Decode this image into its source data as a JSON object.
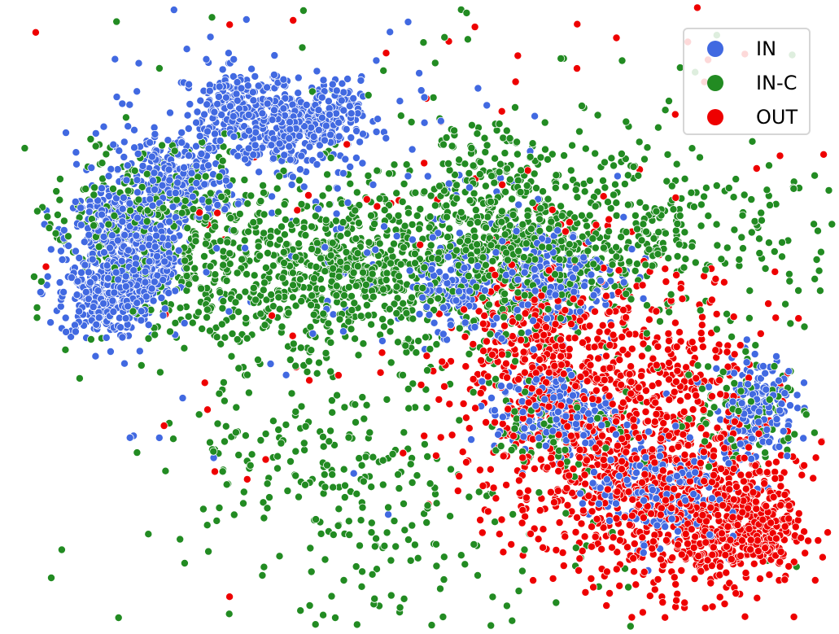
{
  "chart_data": {
    "type": "scatter",
    "title": "",
    "xlabel": "",
    "ylabel": "",
    "axes_visible": false,
    "grid": false,
    "legend_placement": "top-right",
    "marker_edge_color": "#ffffff",
    "series": [
      {
        "name": "IN",
        "color": "#4169e1",
        "clusters": [
          {
            "cx": -90,
            "cy": 60,
            "sx": 5,
            "sy": 6,
            "n": 170
          },
          {
            "cx": -105,
            "cy": 40,
            "sx": 6,
            "sy": 6,
            "n": 200
          },
          {
            "cx": -120,
            "cy": 80,
            "sx": 7,
            "sy": 6,
            "n": 240
          },
          {
            "cx": -130,
            "cy": 28,
            "sx": 6,
            "sy": 6,
            "n": 200
          },
          {
            "cx": -70,
            "cy": 120,
            "sx": 9,
            "sy": 7,
            "n": 260
          },
          {
            "cx": -18,
            "cy": 175,
            "sx": 9,
            "sy": 6,
            "n": 200
          },
          {
            "cx": 20,
            "cy": 158,
            "sx": 10,
            "sy": 6,
            "n": 220
          },
          {
            "cx": 46,
            "cy": 170,
            "sx": 6,
            "sy": 5,
            "n": 110
          },
          {
            "cx": 150,
            "cy": 40,
            "sx": 5,
            "sy": 7,
            "n": 130
          },
          {
            "cx": 230,
            "cy": 45,
            "sx": 10,
            "sy": 8,
            "n": 230
          },
          {
            "cx": 230,
            "cy": -60,
            "sx": 9,
            "sy": 6,
            "n": 220
          },
          {
            "cx": 310,
            "cy": -120,
            "sx": 10,
            "sy": 8,
            "n": 260
          },
          {
            "cx": 390,
            "cy": -55,
            "sx": 6,
            "sy": 8,
            "n": 180
          },
          {
            "cx": 35,
            "cy": 105,
            "sx": 40,
            "sy": 30,
            "n": 200
          }
        ]
      },
      {
        "name": "IN-C",
        "color": "#228b22",
        "clusters": [
          {
            "cx": -115,
            "cy": 78,
            "sx": 14,
            "sy": 8,
            "n": 90
          },
          {
            "cx": -70,
            "cy": 112,
            "sx": 14,
            "sy": 10,
            "n": 110
          },
          {
            "cx": 0,
            "cy": 50,
            "sx": 25,
            "sy": 12,
            "n": 330
          },
          {
            "cx": 45,
            "cy": 40,
            "sx": 25,
            "sy": 15,
            "n": 340
          },
          {
            "cx": 95,
            "cy": 55,
            "sx": 12,
            "sy": 10,
            "n": 220
          },
          {
            "cx": 175,
            "cy": 115,
            "sx": 12,
            "sy": 12,
            "n": 160
          },
          {
            "cx": 190,
            "cy": 50,
            "sx": 10,
            "sy": 14,
            "n": 200
          },
          {
            "cx": 230,
            "cy": 65,
            "sx": 20,
            "sy": 8,
            "n": 150
          },
          {
            "cx": 300,
            "cy": 95,
            "sx": 25,
            "sy": 12,
            "n": 150
          },
          {
            "cx": 300,
            "cy": 65,
            "sx": 35,
            "sy": 10,
            "n": 180
          },
          {
            "cx": 380,
            "cy": -60,
            "sx": 12,
            "sy": 8,
            "n": 90
          },
          {
            "cx": 20,
            "cy": -100,
            "sx": 20,
            "sy": 12,
            "n": 100
          },
          {
            "cx": 110,
            "cy": -150,
            "sx": 25,
            "sy": 15,
            "n": 120
          },
          {
            "cx": 235,
            "cy": -70,
            "sx": 10,
            "sy": 6,
            "n": 70
          },
          {
            "cx": 150,
            "cy": 0,
            "sx": 80,
            "sy": 60,
            "n": 220
          }
        ]
      },
      {
        "name": "OUT",
        "color": "#ee0000",
        "clusters": [
          {
            "cx": 210,
            "cy": 0,
            "sx": 10,
            "sy": 12,
            "n": 190
          },
          {
            "cx": 250,
            "cy": -50,
            "sx": 20,
            "sy": 22,
            "n": 400
          },
          {
            "cx": 300,
            "cy": -100,
            "sx": 20,
            "sy": 20,
            "n": 420
          },
          {
            "cx": 345,
            "cy": -135,
            "sx": 15,
            "sy": 12,
            "n": 380
          },
          {
            "cx": 385,
            "cy": -150,
            "sx": 8,
            "sy": 8,
            "n": 250
          },
          {
            "cx": 300,
            "cy": -40,
            "sx": 20,
            "sy": 20,
            "n": 200
          },
          {
            "cx": 200,
            "cy": 80,
            "sx": 90,
            "sy": 60,
            "n": 140
          }
        ]
      }
    ],
    "xlim": [
      -170,
      420
    ],
    "ylim": [
      -200,
      230
    ]
  }
}
